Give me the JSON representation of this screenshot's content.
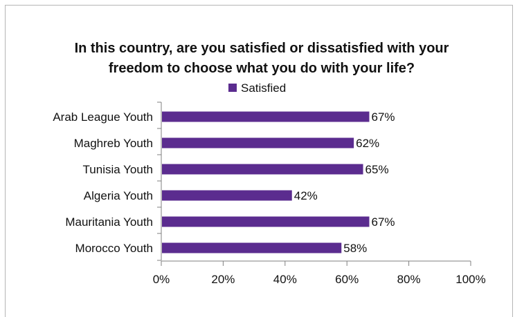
{
  "chart_data": {
    "type": "bar",
    "orientation": "horizontal",
    "title_lines": [
      "In this country, are you satisfied or dissatisfied with your",
      "freedom to choose what you do with your life?"
    ],
    "categories": [
      "Arab League Youth",
      "Maghreb Youth",
      "Tunisia Youth",
      "Algeria Youth",
      "Mauritania Youth",
      "Morocco Youth"
    ],
    "series": [
      {
        "name": "Satisfied",
        "values": [
          67,
          62,
          65,
          42,
          67,
          58
        ],
        "labels": [
          "67%",
          "62%",
          "65%",
          "42%",
          "67%",
          "58%"
        ],
        "color": "#5b2c8f"
      }
    ],
    "xlim": [
      0,
      100
    ],
    "x_ticks": [
      0,
      20,
      40,
      60,
      80,
      100
    ],
    "x_tick_labels": [
      "0%",
      "20%",
      "40%",
      "60%",
      "80%",
      "100%"
    ],
    "grid": false,
    "legend_position": "top-center"
  }
}
